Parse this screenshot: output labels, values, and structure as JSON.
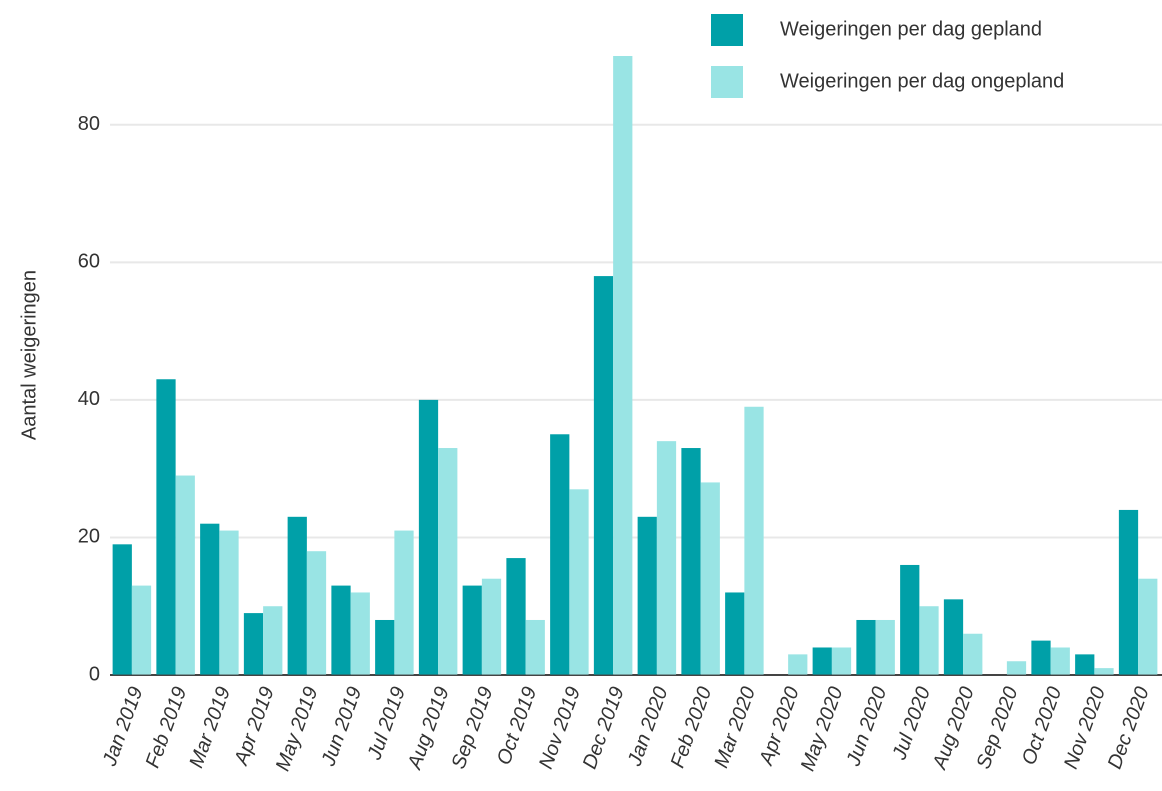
{
  "chart_data": {
    "type": "bar",
    "y_label": "Aantal weigeringen",
    "categories": [
      "Jan 2019",
      "Feb 2019",
      "Mar 2019",
      "Apr 2019",
      "May 2019",
      "Jun 2019",
      "Jul 2019",
      "Aug 2019",
      "Sep 2019",
      "Oct 2019",
      "Nov 2019",
      "Dec 2019",
      "Jan 2020",
      "Feb 2020",
      "Mar 2020",
      "Apr 2020",
      "May 2020",
      "Jun 2020",
      "Jul 2020",
      "Aug 2020",
      "Sep 2020",
      "Oct 2020",
      "Nov 2020",
      "Dec 2020"
    ],
    "series": [
      {
        "name": "Weigeringen per dag gepland",
        "color": "#00a0a8",
        "values": [
          19,
          43,
          22,
          9,
          23,
          13,
          8,
          40,
          13,
          17,
          35,
          58,
          23,
          33,
          12,
          0,
          4,
          8,
          16,
          11,
          0,
          5,
          3,
          24
        ]
      },
      {
        "name": "Weigeringen per dag ongepland",
        "color": "#99e4e4",
        "values": [
          13,
          29,
          21,
          10,
          18,
          12,
          21,
          33,
          14,
          8,
          27,
          90,
          34,
          28,
          39,
          3,
          4,
          8,
          10,
          6,
          2,
          4,
          1,
          14
        ]
      }
    ],
    "ylim": [
      0,
      90
    ],
    "yticks": [
      0,
      20,
      40,
      60,
      80
    ],
    "grid": true,
    "legend": "top-right"
  }
}
